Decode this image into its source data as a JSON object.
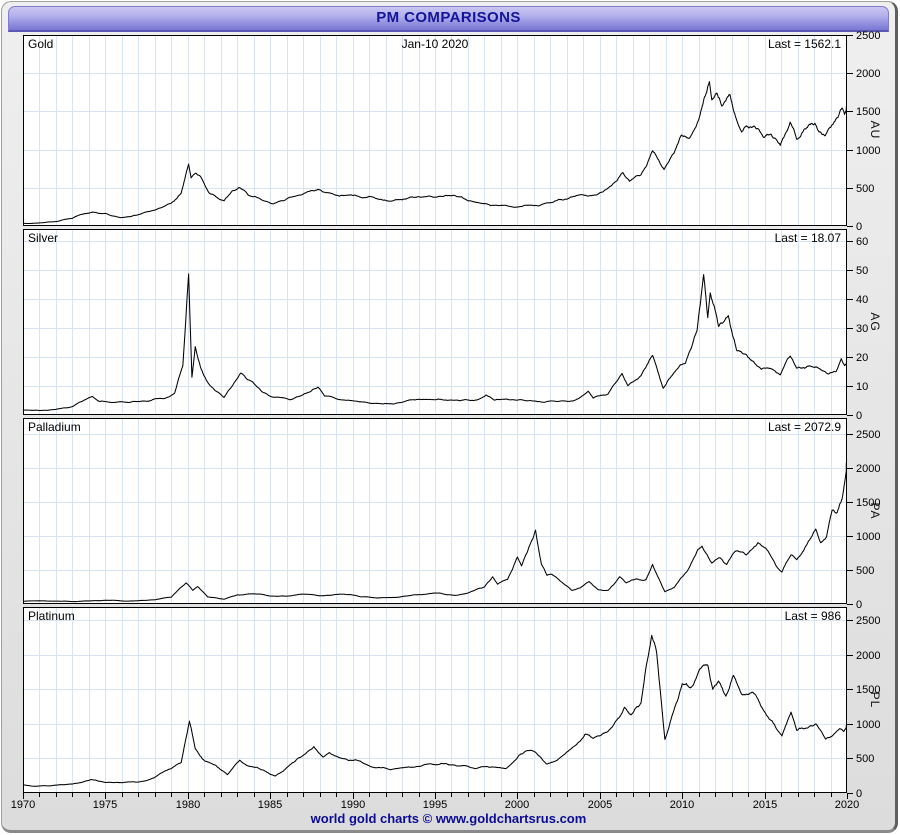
{
  "window": {
    "title": "PM COMPARISONS",
    "footer": "world gold charts © www.goldchartsrus.com"
  },
  "colors": {
    "titlebar_top": "#c9c6f2",
    "titlebar_bottom": "#7a78d2",
    "title_text": "#14149a",
    "footer_text": "#0b0b96",
    "grid": "#d7e4f3",
    "line": "#000000",
    "panel_background": "#ffffff",
    "window_background": "#e4e4e4"
  },
  "x_axis": {
    "start": 1970,
    "end": 2020,
    "major_ticks": [
      1970,
      1975,
      1980,
      1985,
      1990,
      1995,
      2000,
      2005,
      2010,
      2015,
      2020
    ],
    "minor_step": 1,
    "grid": true
  },
  "chart_data": [
    {
      "type": "line",
      "name": "Gold",
      "axis_code": "AU",
      "date_label": "Jan-10 2020",
      "last": 1562.1,
      "last_label": "Last = 1562.1",
      "ylim": [
        0,
        2500
      ],
      "ymax_draw": 2500,
      "yticks": [
        0,
        500,
        1000,
        1500,
        2000,
        2500
      ],
      "legend": "none",
      "points": [
        [
          1970,
          36
        ],
        [
          1971,
          40
        ],
        [
          1972,
          58
        ],
        [
          1973,
          100
        ],
        [
          1974.2,
          183
        ],
        [
          1975,
          165
        ],
        [
          1976,
          110
        ],
        [
          1977,
          148
        ],
        [
          1978,
          207
        ],
        [
          1979,
          300
        ],
        [
          1979.6,
          430
        ],
        [
          1980.05,
          810
        ],
        [
          1980.2,
          630
        ],
        [
          1980.5,
          690
        ],
        [
          1980.8,
          640
        ],
        [
          1981.3,
          430
        ],
        [
          1982.2,
          330
        ],
        [
          1982.7,
          460
        ],
        [
          1983.1,
          505
        ],
        [
          1983.7,
          400
        ],
        [
          1984.5,
          340
        ],
        [
          1985.2,
          290
        ],
        [
          1985.8,
          330
        ],
        [
          1986.5,
          390
        ],
        [
          1987.2,
          440
        ],
        [
          1987.9,
          480
        ],
        [
          1988.5,
          435
        ],
        [
          1989.2,
          390
        ],
        [
          1989.8,
          405
        ],
        [
          1990.5,
          375
        ],
        [
          1991.5,
          355
        ],
        [
          1992.5,
          335
        ],
        [
          1993.5,
          380
        ],
        [
          1994.5,
          385
        ],
        [
          1995.5,
          387
        ],
        [
          1996.2,
          400
        ],
        [
          1997,
          330
        ],
        [
          1998,
          292
        ],
        [
          1999.5,
          258
        ],
        [
          2000.5,
          272
        ],
        [
          2001.3,
          262
        ],
        [
          2002,
          305
        ],
        [
          2003,
          350
        ],
        [
          2004,
          405
        ],
        [
          2005,
          435
        ],
        [
          2006.4,
          700
        ],
        [
          2006.8,
          585
        ],
        [
          2007.5,
          670
        ],
        [
          2008.2,
          985
        ],
        [
          2008.6,
          850
        ],
        [
          2008.9,
          740
        ],
        [
          2009.5,
          950
        ],
        [
          2009.95,
          1190
        ],
        [
          2010.4,
          1150
        ],
        [
          2011,
          1390
        ],
        [
          2011.65,
          1890
        ],
        [
          2011.8,
          1650
        ],
        [
          2012.1,
          1740
        ],
        [
          2012.4,
          1570
        ],
        [
          2012.9,
          1720
        ],
        [
          2013.3,
          1390
        ],
        [
          2013.6,
          1230
        ],
        [
          2013.9,
          1310
        ],
        [
          2014.2,
          1290
        ],
        [
          2014.9,
          1170
        ],
        [
          2015.4,
          1200
        ],
        [
          2015.95,
          1055
        ],
        [
          2016.55,
          1360
        ],
        [
          2016.95,
          1135
        ],
        [
          2017.6,
          1290
        ],
        [
          2018.05,
          1345
        ],
        [
          2018.65,
          1180
        ],
        [
          2019,
          1290
        ],
        [
          2019.45,
          1420
        ],
        [
          2019.7,
          1545
        ],
        [
          2019.85,
          1460
        ],
        [
          2020.03,
          1562.1
        ]
      ]
    },
    {
      "type": "line",
      "name": "Silver",
      "axis_code": "AG",
      "last": 18.07,
      "last_label": "Last = 18.07",
      "ylim": [
        0,
        60
      ],
      "ymax_draw": 64,
      "yticks": [
        0,
        10,
        20,
        30,
        40,
        50,
        60
      ],
      "legend": "none",
      "points": [
        [
          1970,
          1.8
        ],
        [
          1971,
          1.55
        ],
        [
          1972,
          1.95
        ],
        [
          1973,
          2.9
        ],
        [
          1974.2,
          6.4
        ],
        [
          1974.6,
          4.7
        ],
        [
          1975.5,
          4.3
        ],
        [
          1976.5,
          4.35
        ],
        [
          1977.5,
          4.7
        ],
        [
          1978.5,
          5.6
        ],
        [
          1979.2,
          7.5
        ],
        [
          1979.7,
          17
        ],
        [
          1980.05,
          48.5
        ],
        [
          1980.25,
          13
        ],
        [
          1980.45,
          23.5
        ],
        [
          1980.8,
          16
        ],
        [
          1981.3,
          10.5
        ],
        [
          1982.2,
          6
        ],
        [
          1982.7,
          10
        ],
        [
          1983.2,
          14.4
        ],
        [
          1983.8,
          11.8
        ],
        [
          1984.5,
          8
        ],
        [
          1985.3,
          6.1
        ],
        [
          1986.2,
          5.2
        ],
        [
          1987,
          7
        ],
        [
          1987.9,
          9.6
        ],
        [
          1988.3,
          6.5
        ],
        [
          1989,
          5.6
        ],
        [
          1990,
          4.9
        ],
        [
          1991,
          4.1
        ],
        [
          1992,
          3.95
        ],
        [
          1993,
          4.4
        ],
        [
          1994.3,
          5.4
        ],
        [
          1995.5,
          5.2
        ],
        [
          1996.5,
          4.9
        ],
        [
          1997.6,
          5.3
        ],
        [
          1998.1,
          6.9
        ],
        [
          1998.6,
          5.1
        ],
        [
          1999.6,
          5.2
        ],
        [
          2000.5,
          4.9
        ],
        [
          2001.6,
          4.35
        ],
        [
          2002.5,
          4.7
        ],
        [
          2003.5,
          5.1
        ],
        [
          2004.3,
          8.2
        ],
        [
          2004.6,
          5.8
        ],
        [
          2005.5,
          7.2
        ],
        [
          2006.35,
          14.3
        ],
        [
          2006.7,
          10.1
        ],
        [
          2007.5,
          13.5
        ],
        [
          2008.2,
          20.5
        ],
        [
          2008.85,
          9.2
        ],
        [
          2009.5,
          14.5
        ],
        [
          2010.2,
          17.8
        ],
        [
          2010.9,
          29
        ],
        [
          2011.3,
          48.3
        ],
        [
          2011.55,
          33.5
        ],
        [
          2011.7,
          42
        ],
        [
          2012.2,
          30.5
        ],
        [
          2012.8,
          34.2
        ],
        [
          2013.3,
          22.3
        ],
        [
          2014,
          19.8
        ],
        [
          2014.8,
          15.7
        ],
        [
          2015.5,
          15.6
        ],
        [
          2015.95,
          13.8
        ],
        [
          2016.55,
          20.3
        ],
        [
          2016.95,
          16.1
        ],
        [
          2017.6,
          16.8
        ],
        [
          2018.2,
          16.4
        ],
        [
          2018.85,
          14.1
        ],
        [
          2019.35,
          15
        ],
        [
          2019.65,
          19.4
        ],
        [
          2019.85,
          17
        ],
        [
          2020.03,
          18.07
        ]
      ]
    },
    {
      "type": "line",
      "name": "Palladium",
      "axis_code": "PA",
      "last": 2072.9,
      "last_label": "Last = 2072.9",
      "ylim": [
        0,
        2500
      ],
      "ymax_draw": 2730,
      "yticks": [
        0,
        500,
        1000,
        1500,
        2000,
        2500
      ],
      "legend": "none",
      "points": [
        [
          1970,
          40
        ],
        [
          1972,
          42
        ],
        [
          1974,
          45
        ],
        [
          1976,
          45
        ],
        [
          1977,
          48
        ],
        [
          1978,
          62
        ],
        [
          1979,
          100
        ],
        [
          1979.9,
          310
        ],
        [
          1980.3,
          200
        ],
        [
          1980.6,
          255
        ],
        [
          1981.2,
          105
        ],
        [
          1982.2,
          70
        ],
        [
          1983,
          135
        ],
        [
          1984,
          150
        ],
        [
          1985,
          115
        ],
        [
          1986,
          115
        ],
        [
          1987.4,
          140
        ],
        [
          1988,
          120
        ],
        [
          1989.3,
          145
        ],
        [
          1990.5,
          105
        ],
        [
          1991.5,
          88
        ],
        [
          1992.6,
          95
        ],
        [
          1993.5,
          125
        ],
        [
          1994.5,
          145
        ],
        [
          1995.3,
          160
        ],
        [
          1996.3,
          128
        ],
        [
          1997.3,
          190
        ],
        [
          1998,
          250
        ],
        [
          1998.5,
          400
        ],
        [
          1998.8,
          290
        ],
        [
          1999.4,
          360
        ],
        [
          2000,
          690
        ],
        [
          2000.25,
          560
        ],
        [
          2000.6,
          760
        ],
        [
          2000.95,
          965
        ],
        [
          2001.1,
          1085
        ],
        [
          2001.45,
          590
        ],
        [
          2001.8,
          420
        ],
        [
          2002.1,
          435
        ],
        [
          2002.7,
          320
        ],
        [
          2003.3,
          200
        ],
        [
          2003.8,
          235
        ],
        [
          2004.35,
          330
        ],
        [
          2004.9,
          210
        ],
        [
          2005.5,
          200
        ],
        [
          2006.2,
          400
        ],
        [
          2006.6,
          310
        ],
        [
          2007.2,
          370
        ],
        [
          2007.8,
          355
        ],
        [
          2008.2,
          580
        ],
        [
          2008.95,
          180
        ],
        [
          2009.5,
          240
        ],
        [
          2010.3,
          480
        ],
        [
          2010.95,
          800
        ],
        [
          2011.2,
          850
        ],
        [
          2011.8,
          600
        ],
        [
          2012.3,
          680
        ],
        [
          2012.7,
          580
        ],
        [
          2013.2,
          770
        ],
        [
          2013.9,
          720
        ],
        [
          2014.6,
          900
        ],
        [
          2015.2,
          780
        ],
        [
          2015.7,
          560
        ],
        [
          2016.05,
          470
        ],
        [
          2016.6,
          720
        ],
        [
          2016.95,
          650
        ],
        [
          2017.4,
          800
        ],
        [
          2017.9,
          1010
        ],
        [
          2018.1,
          1100
        ],
        [
          2018.4,
          900
        ],
        [
          2018.75,
          980
        ],
        [
          2019.1,
          1380
        ],
        [
          2019.4,
          1340
        ],
        [
          2019.7,
          1540
        ],
        [
          2019.9,
          1850
        ],
        [
          2020.03,
          2072.9
        ]
      ]
    },
    {
      "type": "line",
      "name": "Platinum",
      "axis_code": "PL",
      "last": 986,
      "last_label": "Last = 986",
      "ylim": [
        0,
        2500
      ],
      "ymax_draw": 2690,
      "yticks": [
        0,
        500,
        1000,
        1500,
        2000,
        2500
      ],
      "legend": "none",
      "points": [
        [
          1970,
          120
        ],
        [
          1970.7,
          97
        ],
        [
          1971.5,
          103
        ],
        [
          1972.5,
          120
        ],
        [
          1973.5,
          150
        ],
        [
          1974.15,
          195
        ],
        [
          1975,
          152
        ],
        [
          1976,
          148
        ],
        [
          1977,
          158
        ],
        [
          1978,
          225
        ],
        [
          1979,
          352
        ],
        [
          1979.6,
          440
        ],
        [
          1980.1,
          1040
        ],
        [
          1980.45,
          640
        ],
        [
          1981,
          470
        ],
        [
          1981.7,
          400
        ],
        [
          1982.4,
          265
        ],
        [
          1983.15,
          475
        ],
        [
          1983.8,
          385
        ],
        [
          1984.6,
          330
        ],
        [
          1985.3,
          245
        ],
        [
          1985.9,
          340
        ],
        [
          1986.5,
          455
        ],
        [
          1987,
          545
        ],
        [
          1987.65,
          670
        ],
        [
          1988.2,
          520
        ],
        [
          1988.6,
          585
        ],
        [
          1989.3,
          505
        ],
        [
          1990.2,
          480
        ],
        [
          1991.2,
          375
        ],
        [
          1992.3,
          335
        ],
        [
          1993.4,
          378
        ],
        [
          1994.4,
          412
        ],
        [
          1995.4,
          430
        ],
        [
          1996.3,
          392
        ],
        [
          1997.4,
          355
        ],
        [
          1998.3,
          372
        ],
        [
          1999.3,
          352
        ],
        [
          2000.1,
          545
        ],
        [
          2000.55,
          610
        ],
        [
          2001.1,
          590
        ],
        [
          2001.75,
          420
        ],
        [
          2002.4,
          470
        ],
        [
          2003.3,
          650
        ],
        [
          2004.1,
          850
        ],
        [
          2004.6,
          790
        ],
        [
          2005.3,
          870
        ],
        [
          2006.1,
          1080
        ],
        [
          2006.5,
          1240
        ],
        [
          2006.9,
          1130
        ],
        [
          2007.5,
          1300
        ],
        [
          2008.15,
          2280
        ],
        [
          2008.45,
          2030
        ],
        [
          2008.95,
          775
        ],
        [
          2009.4,
          1130
        ],
        [
          2010,
          1580
        ],
        [
          2010.5,
          1520
        ],
        [
          2011.05,
          1790
        ],
        [
          2011.55,
          1850
        ],
        [
          2011.85,
          1500
        ],
        [
          2012.2,
          1620
        ],
        [
          2012.65,
          1400
        ],
        [
          2013.1,
          1700
        ],
        [
          2013.6,
          1430
        ],
        [
          2014.25,
          1460
        ],
        [
          2014.95,
          1190
        ],
        [
          2015.6,
          990
        ],
        [
          2016.05,
          825
        ],
        [
          2016.6,
          1170
        ],
        [
          2016.95,
          905
        ],
        [
          2017.6,
          940
        ],
        [
          2018.1,
          1000
        ],
        [
          2018.7,
          780
        ],
        [
          2019.2,
          850
        ],
        [
          2019.55,
          930
        ],
        [
          2019.8,
          890
        ],
        [
          2020.03,
          986
        ]
      ]
    }
  ]
}
